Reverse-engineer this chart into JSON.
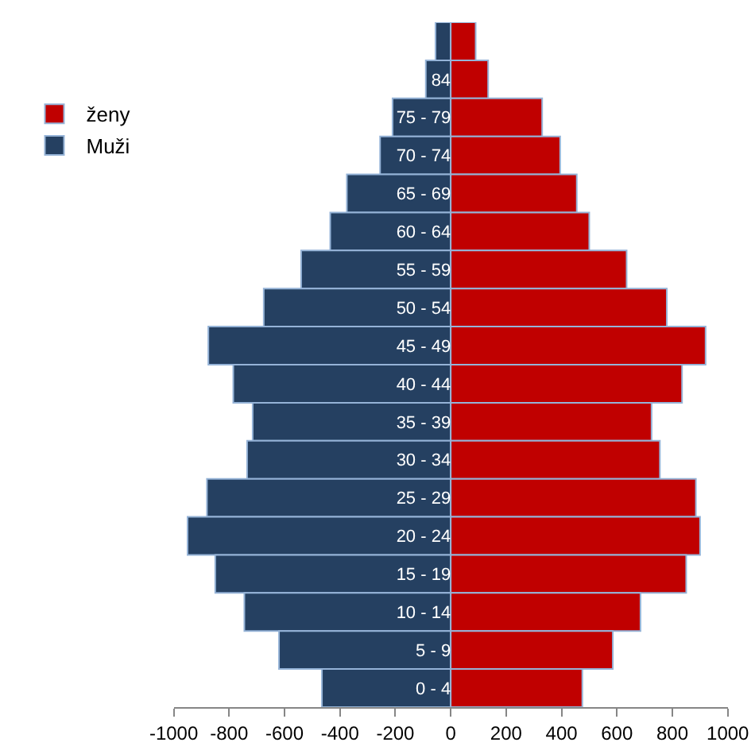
{
  "chart_data": {
    "type": "bar",
    "orientation": "horizontal",
    "categories": [
      null,
      "84",
      "75 - 79",
      "70 - 74",
      "65 - 69",
      "60 - 64",
      "55 - 59",
      "50 - 54",
      "45 - 49",
      "40 - 44",
      "35 - 39",
      "30 - 34",
      "25 - 29",
      "20 - 24",
      "15 - 19",
      "10 - 14",
      "5 - 9",
      "0 - 4"
    ],
    "series": [
      {
        "name": "Muži",
        "color": "#254061",
        "values": [
          -55,
          -90,
          -210,
          -255,
          -375,
          -435,
          -540,
          -675,
          -875,
          -785,
          -715,
          -735,
          -880,
          -950,
          -850,
          -745,
          -620,
          -465
        ]
      },
      {
        "name": "ženy",
        "color": "#c00000",
        "values": [
          90,
          135,
          330,
          395,
          455,
          500,
          635,
          780,
          920,
          835,
          725,
          755,
          885,
          900,
          850,
          685,
          585,
          475
        ]
      }
    ],
    "xlim": [
      -1000,
      1000
    ],
    "xticks": [
      -1000,
      -800,
      -600,
      -400,
      -200,
      0,
      200,
      400,
      600,
      800,
      1000
    ],
    "stacked": true,
    "grid": false,
    "legend": "left"
  }
}
